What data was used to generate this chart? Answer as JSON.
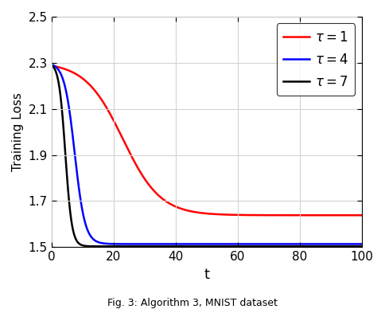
{
  "title": "",
  "xlabel": "t",
  "ylabel": "Training Loss",
  "xlim": [
    0,
    100
  ],
  "ylim": [
    1.5,
    2.5
  ],
  "yticks": [
    1.5,
    1.7,
    1.9,
    2.1,
    2.3,
    2.5
  ],
  "xticks": [
    0,
    20,
    40,
    60,
    80,
    100
  ],
  "caption": "Fig. 3: Algorithm 3, MNIST dataset",
  "lines": [
    {
      "tau": 1,
      "color": "#ff0000",
      "label": "$\\tau = 1$",
      "asymptote": 1.638,
      "k": 0.165,
      "t0": 23.0
    },
    {
      "tau": 4,
      "color": "#0000ff",
      "label": "$\\tau = 4$",
      "asymptote": 1.513,
      "k": 0.6,
      "t0": 7.5
    },
    {
      "tau": 7,
      "color": "#000000",
      "label": "$\\tau = 7$",
      "asymptote": 1.503,
      "k": 0.95,
      "t0": 4.5
    }
  ],
  "start_val": 2.302,
  "line_width": 1.8,
  "legend_loc": "upper right",
  "legend_fontsize": 12,
  "tick_labelsize": 11,
  "xlabel_fontsize": 13,
  "ylabel_fontsize": 11,
  "caption_fontsize": 9,
  "grid": true,
  "grid_color": "#d3d3d3",
  "grid_linestyle": "-",
  "grid_linewidth": 0.8
}
